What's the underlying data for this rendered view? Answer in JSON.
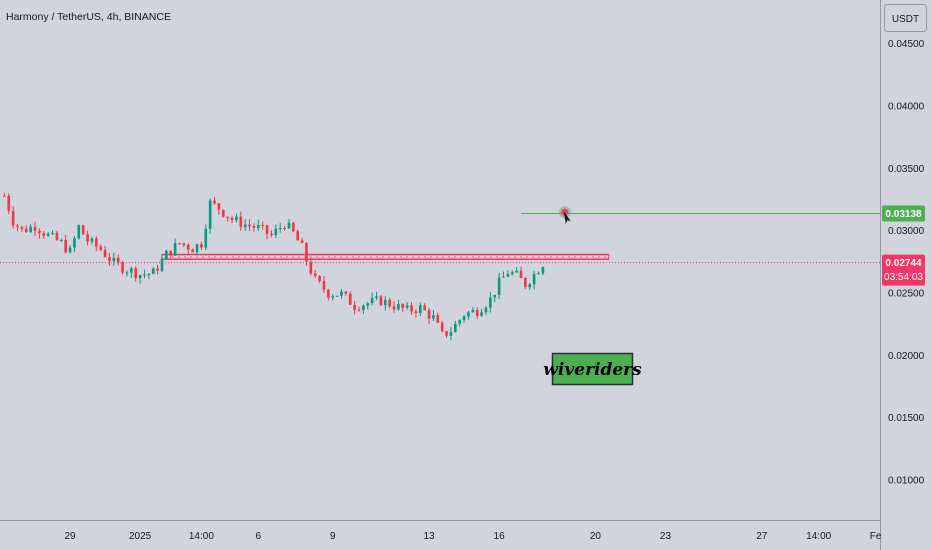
{
  "header": {
    "title": "Harmony / TetherUS, 4h, BINANCE"
  },
  "currency_button": {
    "label": "USDT"
  },
  "brand": {
    "label": "wiveriders"
  },
  "price_tags": {
    "target": {
      "price": "0.03138",
      "color": "#4caf50"
    },
    "current": {
      "price": "0.02744",
      "countdown": "03:54:03",
      "color": "#f23668"
    }
  },
  "colors": {
    "background": "#d1d4dc",
    "up": "#089981",
    "down": "#f23645",
    "zone": "#f23668",
    "target_line": "#4caf50",
    "brand_box": "#4caf50"
  },
  "chart_data": {
    "type": "candlestick",
    "title": "Harmony / TetherUS, 4h, BINANCE",
    "ylim": [
      0.0068,
      0.0485
    ],
    "x_range": [
      -1,
      200
    ],
    "y_ticks": [
      "0.04500",
      "0.04000",
      "0.03500",
      "0.03000",
      "0.02500",
      "0.02000",
      "0.01500",
      "0.01000"
    ],
    "y_tick_values": [
      0.045,
      0.04,
      0.035,
      0.03,
      0.025,
      0.02,
      0.015,
      0.01
    ],
    "x_ticks": [
      {
        "label": "29",
        "index": 15
      },
      {
        "label": "2025",
        "index": 31
      },
      {
        "label": "14:00",
        "index": 45
      },
      {
        "label": "6",
        "index": 58
      },
      {
        "label": "9",
        "index": 75
      },
      {
        "label": "13",
        "index": 97
      },
      {
        "label": "16",
        "index": 113
      },
      {
        "label": "20",
        "index": 135
      },
      {
        "label": "23",
        "index": 151
      },
      {
        "label": "27",
        "index": 173
      },
      {
        "label": "14:00",
        "index": 186
      },
      {
        "label": "Fe",
        "index": 199
      }
    ],
    "grid": false,
    "levels": [
      {
        "label": "0.03138",
        "price": 0.03138,
        "start_index": 118,
        "end_index": 200
      },
      {
        "label": "0.02744",
        "price": 0.02744
      }
    ],
    "resistance_zone": {
      "low": 0.0277,
      "high": 0.0281,
      "start_index": 36,
      "end_index": 138
    },
    "marker": {
      "index": 128,
      "price": 0.03148
    },
    "series": [
      {
        "anchors": [
          [
            0,
            0.0328
          ],
          [
            2,
            0.0308
          ],
          [
            4,
            0.03
          ],
          [
            7,
            0.0304
          ],
          [
            10,
            0.0296
          ],
          [
            13,
            0.029
          ],
          [
            15,
            0.0283
          ],
          [
            17,
            0.0303
          ],
          [
            19,
            0.0292
          ],
          [
            22,
            0.0285
          ],
          [
            25,
            0.0274
          ],
          [
            28,
            0.0269
          ],
          [
            31,
            0.0265
          ],
          [
            34,
            0.0266
          ],
          [
            37,
            0.0281
          ],
          [
            40,
            0.029
          ],
          [
            43,
            0.0286
          ],
          [
            45,
            0.029
          ],
          [
            46,
            0.0306
          ],
          [
            47,
            0.0322
          ],
          [
            49,
            0.0318
          ],
          [
            52,
            0.0309
          ],
          [
            55,
            0.0305
          ],
          [
            58,
            0.0302
          ],
          [
            61,
            0.0296
          ],
          [
            64,
            0.0306
          ],
          [
            66,
            0.0298
          ],
          [
            68,
            0.0286
          ],
          [
            69,
            0.0276
          ],
          [
            71,
            0.026
          ],
          [
            74,
            0.025
          ],
          [
            77,
            0.0249
          ],
          [
            80,
            0.024
          ],
          [
            83,
            0.0242
          ],
          [
            86,
            0.0244
          ],
          [
            89,
            0.024
          ],
          [
            92,
            0.0236
          ],
          [
            95,
            0.0238
          ],
          [
            98,
            0.023
          ],
          [
            100,
            0.0216
          ],
          [
            102,
            0.022
          ],
          [
            105,
            0.0233
          ],
          [
            108,
            0.0236
          ],
          [
            111,
            0.0245
          ],
          [
            113,
            0.0258
          ],
          [
            115,
            0.0267
          ],
          [
            117,
            0.0264
          ],
          [
            119,
            0.0257
          ],
          [
            121,
            0.0265
          ],
          [
            123,
            0.0274
          ]
        ]
      }
    ]
  }
}
